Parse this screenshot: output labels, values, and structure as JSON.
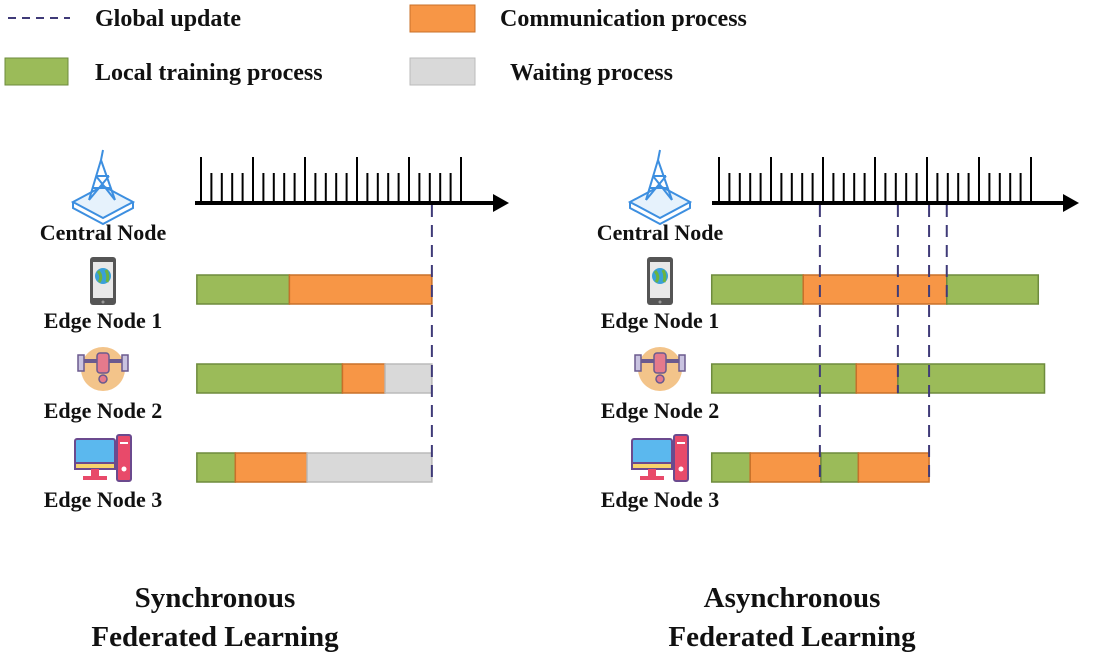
{
  "legend": {
    "global_update": "Global update",
    "communication": "Communication process",
    "local_training": "Local training process",
    "waiting": "Waiting process"
  },
  "colors": {
    "local_training": "#9bbb59",
    "communication": "#f79646",
    "waiting": "#d9d9d9",
    "global_update": "#3f3a78"
  },
  "node_labels": {
    "central": "Central Node",
    "edge1": "Edge Node 1",
    "edge2": "Edge Node 2",
    "edge3": "Edge Node 3"
  },
  "node_icons": [
    "tower-icon",
    "smartphone-icon",
    "drone-icon",
    "desktop-computer-icon"
  ],
  "panels": [
    {
      "title_line1": "Synchronous",
      "title_line2": "Federated Learning",
      "tick_count": 26,
      "rows": [
        [
          [
            "local_training",
            -0.4,
            8.5
          ],
          [
            "communication",
            8.5,
            22.2
          ]
        ],
        [
          [
            "local_training",
            -0.4,
            13.6
          ],
          [
            "communication",
            13.6,
            17.7
          ],
          [
            "waiting",
            17.7,
            22.2
          ]
        ],
        [
          [
            "local_training",
            -0.4,
            3.3
          ],
          [
            "communication",
            3.3,
            10.2
          ],
          [
            "waiting",
            10.2,
            22.2
          ]
        ]
      ],
      "global_updates": [
        [
          22.2,
          3
        ]
      ]
    },
    {
      "title_line1": "Asynchronous",
      "title_line2": "Federated Learning",
      "tick_count": 31,
      "rows": [
        [
          [
            "local_training",
            -0.7,
            8.1
          ],
          [
            "communication",
            8.1,
            21.9
          ],
          [
            "local_training",
            21.9,
            30.7
          ]
        ],
        [
          [
            "local_training",
            -0.7,
            13.2
          ],
          [
            "communication",
            13.2,
            17.2
          ],
          [
            "local_training",
            17.2,
            31.3
          ]
        ],
        [
          [
            "local_training",
            -0.7,
            3.0
          ],
          [
            "communication",
            3.0,
            9.8
          ],
          [
            "local_training",
            9.8,
            13.4
          ],
          [
            "communication",
            13.4,
            20.2
          ]
        ]
      ],
      "global_updates": [
        [
          9.7,
          3
        ],
        [
          17.2,
          2
        ],
        [
          20.2,
          3
        ],
        [
          21.9,
          1
        ]
      ]
    }
  ]
}
